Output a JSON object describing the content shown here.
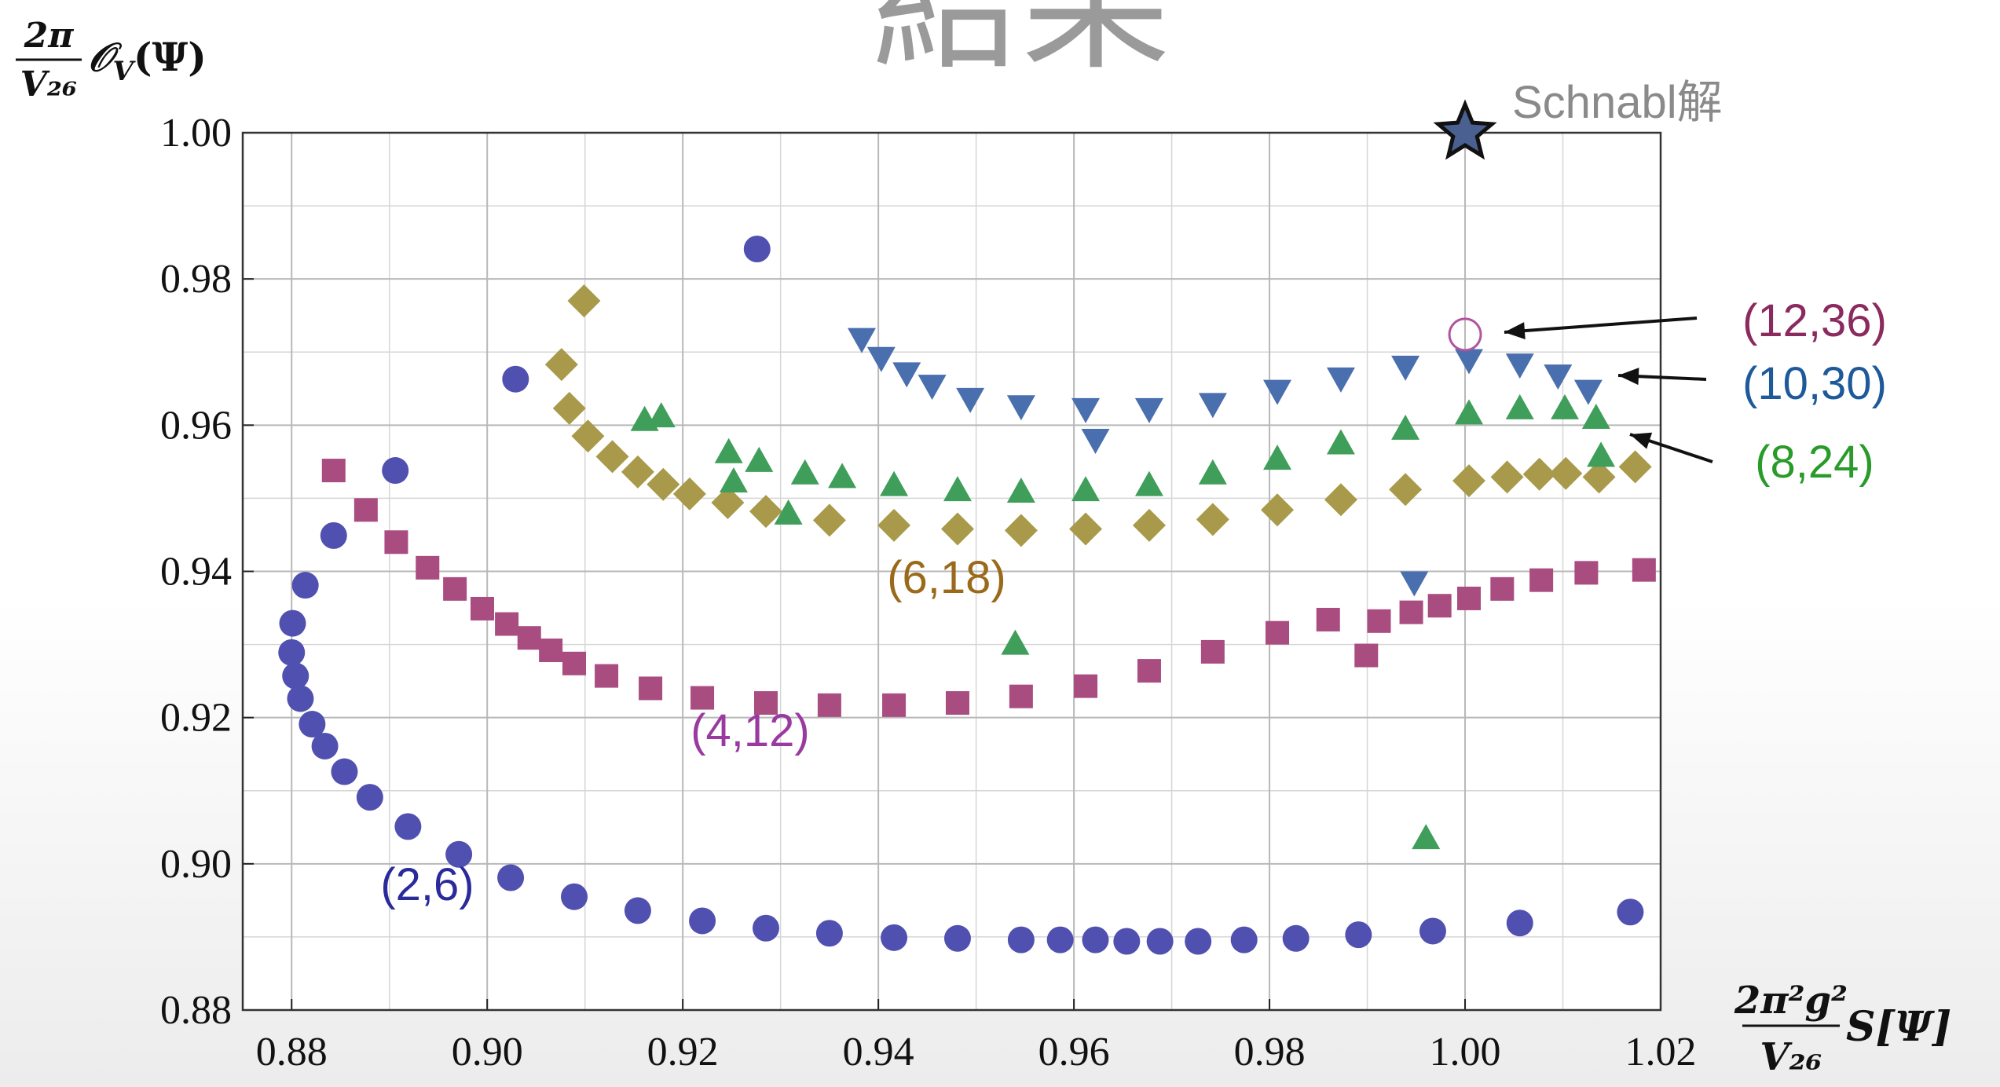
{
  "chart_data": {
    "type": "scatter",
    "title": "結果",
    "xlabel": {
      "numerator": "2π²g²",
      "denominator": "V₂₆",
      "text": "S[Ψ]"
    },
    "ylabel": {
      "numerator": "2π",
      "denominator": "V₂₆",
      "symbol": "𝒪",
      "subscript": "V",
      "argument": "(Ψ)"
    },
    "xlim": [
      0.875,
      1.02
    ],
    "ylim": [
      0.88,
      1.0
    ],
    "xticks": [
      {
        "value": 0.88,
        "label": "0.88"
      },
      {
        "value": 0.9,
        "label": "0.90"
      },
      {
        "value": 0.92,
        "label": "0.92"
      },
      {
        "value": 0.94,
        "label": "0.94"
      },
      {
        "value": 0.96,
        "label": "0.96"
      },
      {
        "value": 0.98,
        "label": "0.98"
      },
      {
        "value": 1.0,
        "label": "1.00"
      },
      {
        "value": 1.02,
        "label": "1.02"
      }
    ],
    "yticks": [
      {
        "value": 0.88,
        "label": "0.88"
      },
      {
        "value": 0.9,
        "label": "0.90"
      },
      {
        "value": 0.92,
        "label": "0.92"
      },
      {
        "value": 0.94,
        "label": "0.94"
      },
      {
        "value": 0.96,
        "label": "0.96"
      },
      {
        "value": 0.98,
        "label": "0.98"
      },
      {
        "value": 1.0,
        "label": "1.00"
      }
    ],
    "grid": true,
    "minor_grid": true,
    "series": [
      {
        "name": "(2,6)",
        "color": "#5050b0",
        "label_color": "#2a2a9a",
        "marker": "circle",
        "x": [
          0.88,
          0.8801,
          0.8814,
          0.8843,
          0.8906,
          0.9029,
          0.9276,
          0.8804,
          0.8809,
          0.8821,
          0.8834,
          0.8854,
          0.888,
          0.8919,
          0.8971,
          0.9024,
          0.9089,
          0.9154,
          0.922,
          0.9285,
          0.935,
          0.9416,
          0.9481,
          0.9546,
          0.9586,
          0.9622,
          0.9654,
          0.9688,
          0.9727,
          0.9774,
          0.9827,
          0.9891,
          0.9967,
          1.0056,
          1.0169
        ],
        "y": [
          0.9289,
          0.9329,
          0.9381,
          0.9449,
          0.9538,
          0.9663,
          0.9841,
          0.9257,
          0.9226,
          0.9191,
          0.9161,
          0.9126,
          0.9091,
          0.9051,
          0.9013,
          0.8981,
          0.8955,
          0.8936,
          0.8922,
          0.8912,
          0.8905,
          0.8899,
          0.8898,
          0.8896,
          0.8896,
          0.8896,
          0.8894,
          0.8894,
          0.8894,
          0.8896,
          0.8898,
          0.8903,
          0.8908,
          0.8919,
          0.8934
        ]
      },
      {
        "name": "(4,12)",
        "color": "#a94c80",
        "label_color": "#9a3aa0",
        "marker": "square",
        "x": [
          0.8843,
          0.8876,
          0.8907,
          0.8939,
          0.8967,
          0.8995,
          0.902,
          0.9043,
          0.9065,
          0.9089,
          0.9122,
          0.9167,
          0.922,
          0.9285,
          0.935,
          0.9416,
          0.9481,
          0.9546,
          0.9612,
          0.9677,
          0.9742,
          0.9808,
          0.986,
          0.9899,
          0.9912,
          0.9945,
          0.9974,
          1.0004,
          1.0038,
          1.0078,
          1.0124,
          1.0183
        ],
        "y": [
          0.9538,
          0.9484,
          0.944,
          0.9405,
          0.9376,
          0.9349,
          0.9328,
          0.9309,
          0.9292,
          0.9274,
          0.9257,
          0.924,
          0.9227,
          0.922,
          0.9217,
          0.9217,
          0.922,
          0.9229,
          0.9243,
          0.9264,
          0.929,
          0.9316,
          0.9334,
          0.9285,
          0.9332,
          0.9344,
          0.9353,
          0.9363,
          0.9376,
          0.9388,
          0.9398,
          0.9402
        ]
      },
      {
        "name": "(6,18)",
        "color": "#a89a4a",
        "label_color": "#9a6a1a",
        "marker": "diamond",
        "x": [
          0.9099,
          0.9076,
          0.9084,
          0.9103,
          0.9128,
          0.9154,
          0.918,
          0.9207,
          0.9246,
          0.9285,
          0.935,
          0.9416,
          0.9481,
          0.9546,
          0.9612,
          0.9677,
          0.9742,
          0.9808,
          0.9873,
          0.9939,
          1.0004,
          1.0043,
          1.0076,
          1.0103,
          1.0137,
          1.0174
        ],
        "y": [
          0.977,
          0.9683,
          0.9623,
          0.9585,
          0.9557,
          0.9536,
          0.9519,
          0.9506,
          0.9494,
          0.9482,
          0.947,
          0.9463,
          0.9458,
          0.9456,
          0.9458,
          0.9463,
          0.9471,
          0.9484,
          0.9498,
          0.9512,
          0.9524,
          0.9529,
          0.9533,
          0.9534,
          0.9529,
          0.9543
        ]
      },
      {
        "name": "(8,24)",
        "color": "#3f9e5a",
        "label_color": "#2a9a2a",
        "marker": "triangle-up",
        "x": [
          0.9161,
          0.9178,
          0.9247,
          0.9252,
          0.9278,
          0.9308,
          0.9325,
          0.954,
          0.996,
          0.9363,
          0.9416,
          0.9481,
          0.9546,
          0.9612,
          0.9677,
          0.9742,
          0.9808,
          0.9873,
          0.9939,
          1.0004,
          1.0056,
          1.0102,
          1.0134,
          1.0139
        ],
        "y": [
          0.9606,
          0.9611,
          0.9562,
          0.9522,
          0.955,
          0.9478,
          0.9533,
          0.93,
          0.9034,
          0.9528,
          0.9517,
          0.951,
          0.9508,
          0.951,
          0.9517,
          0.9533,
          0.9553,
          0.9574,
          0.9594,
          0.9615,
          0.9622,
          0.9622,
          0.9609,
          0.9557
        ]
      },
      {
        "name": "(10,30)",
        "color": "#4a6fae",
        "label_color": "#1e5a9a",
        "marker": "triangle-down",
        "x": [
          0.9383,
          0.9403,
          0.9429,
          0.9455,
          0.9494,
          0.9546,
          0.9622,
          0.9612,
          0.9677,
          0.9742,
          0.9808,
          0.9873,
          0.9939,
          0.9948,
          1.0004,
          1.0056,
          1.0095,
          1.0126
        ],
        "y": [
          0.9719,
          0.9693,
          0.9672,
          0.9655,
          0.9637,
          0.9627,
          0.9581,
          0.9623,
          0.9623,
          0.963,
          0.9648,
          0.9665,
          0.9681,
          0.9386,
          0.969,
          0.9684,
          0.9669,
          0.9648
        ]
      },
      {
        "name": "(12,36)",
        "color": "#b0549e",
        "label_color": "#8b2a5e",
        "marker": "circle-open",
        "x": [
          1.0
        ],
        "y": [
          0.9724
        ]
      },
      {
        "name": "Schnabl解",
        "color": "#4a6090",
        "label_color": "#8a8a8a",
        "marker": "star",
        "x": [
          1.0
        ],
        "y": [
          1.0
        ]
      }
    ]
  }
}
